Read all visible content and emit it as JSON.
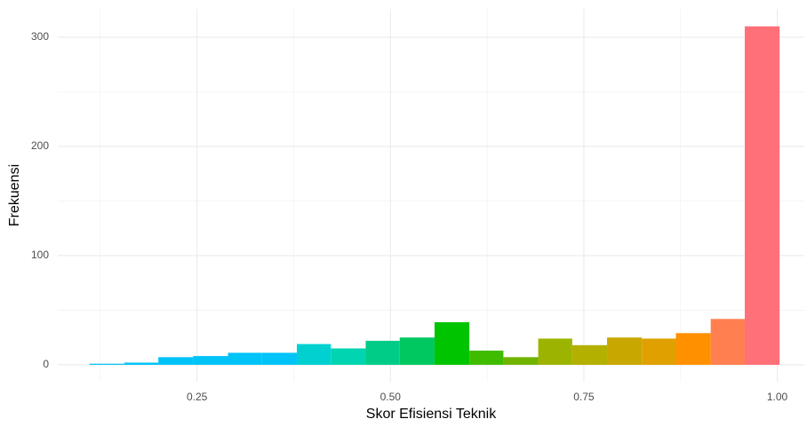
{
  "chart_data": {
    "type": "histogram",
    "x_label": "Skor Efisiensi Teknik",
    "y_label": "Frekuensi",
    "bins": [
      0.111,
      0.156,
      0.2,
      0.245,
      0.29,
      0.334,
      0.379,
      0.423,
      0.468,
      0.512,
      0.557,
      0.602,
      0.646,
      0.691,
      0.735,
      0.78,
      0.825,
      0.869,
      0.914,
      0.958,
      1.003
    ],
    "values": [
      1,
      2,
      7,
      8,
      11,
      11,
      19,
      15,
      22,
      25,
      39,
      13,
      7,
      24,
      18,
      25,
      24,
      29,
      42,
      310
    ],
    "colors": [
      "#00c3f8",
      "#00c3f8",
      "#00c3f8",
      "#00c3f8",
      "#00c3f8",
      "#00c3f8",
      "#00d0d0",
      "#00d4b0",
      "#00cc88",
      "#00c860",
      "#00c400",
      "#40bc00",
      "#70b400",
      "#9cb400",
      "#b4b000",
      "#c8a800",
      "#e0a000",
      "#ff9000",
      "#ff7f50",
      "#ff7078"
    ],
    "xlim": [
      0.07,
      1.035
    ],
    "ylim": [
      -15.5,
      326
    ],
    "xticks": [
      0.25,
      {
        "value": 0.5,
        "label": "0.50"
      },
      0.75,
      {
        "value": 1.0,
        "label": "1.00"
      }
    ],
    "yticks": [
      0,
      100,
      200,
      300
    ],
    "x_minor_grid": [
      0.125,
      0.375,
      0.625,
      0.875
    ],
    "y_minor_grid": [
      50,
      150,
      250
    ],
    "grid": true
  }
}
